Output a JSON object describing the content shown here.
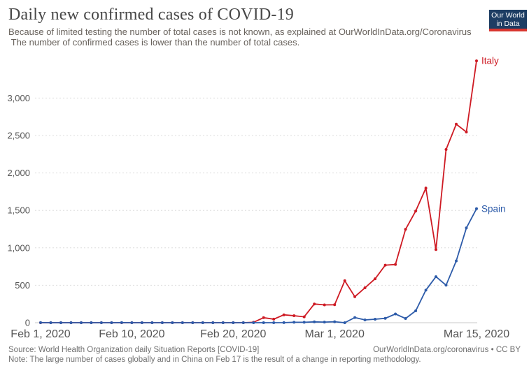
{
  "header": {
    "title": "Daily new confirmed cases of COVID-19",
    "subtitle_line1": "Because of limited testing the number of total cases is not known, as explained at OurWorldInData.org/Coronavirus",
    "subtitle_line2": " The number of confirmed cases is lower than the number of total cases."
  },
  "logo": {
    "line1": "Our World",
    "line2": "in Data",
    "bg_color": "#1d3d63",
    "bar_color": "#d8362f"
  },
  "chart_data": {
    "type": "line",
    "title": "Daily new confirmed cases of COVID-19",
    "xlabel": "",
    "ylabel": "",
    "grid": true,
    "ylim": [
      0,
      3500
    ],
    "x": [
      "Feb 1",
      "Feb 2",
      "Feb 3",
      "Feb 4",
      "Feb 5",
      "Feb 6",
      "Feb 7",
      "Feb 8",
      "Feb 9",
      "Feb 10",
      "Feb 11",
      "Feb 12",
      "Feb 13",
      "Feb 14",
      "Feb 15",
      "Feb 16",
      "Feb 17",
      "Feb 18",
      "Feb 19",
      "Feb 20",
      "Feb 21",
      "Feb 22",
      "Feb 23",
      "Feb 24",
      "Feb 25",
      "Feb 26",
      "Feb 27",
      "Feb 28",
      "Feb 29",
      "Mar 1",
      "Mar 2",
      "Mar 3",
      "Mar 4",
      "Mar 5",
      "Mar 6",
      "Mar 7",
      "Mar 8",
      "Mar 9",
      "Mar 10",
      "Mar 11",
      "Mar 12",
      "Mar 13",
      "Mar 14",
      "Mar 15"
    ],
    "x_ticks": [
      {
        "index": 0,
        "label": "Feb 1, 2020"
      },
      {
        "index": 9,
        "label": "Feb 10, 2020"
      },
      {
        "index": 19,
        "label": "Feb 20, 2020"
      },
      {
        "index": 29,
        "label": "Mar 1, 2020"
      },
      {
        "index": 43,
        "label": "Mar 15, 2020"
      }
    ],
    "y_ticks": [
      {
        "value": 0,
        "label": "0"
      },
      {
        "value": 500,
        "label": "500"
      },
      {
        "value": 1000,
        "label": "1,000"
      },
      {
        "value": 1500,
        "label": "1,500"
      },
      {
        "value": 2000,
        "label": "2,000"
      },
      {
        "value": 2500,
        "label": "2,500"
      },
      {
        "value": 3000,
        "label": "3,000"
      }
    ],
    "legend_position": "end-of-line labels",
    "series": [
      {
        "name": "Italy",
        "color": "#ce1a23",
        "values": [
          0,
          0,
          0,
          0,
          0,
          0,
          0,
          0,
          0,
          0,
          0,
          0,
          0,
          0,
          0,
          0,
          0,
          0,
          0,
          0,
          0,
          6,
          67,
          48,
          105,
          93,
          78,
          250,
          238,
          240,
          561,
          347,
          466,
          587,
          769,
          778,
          1247,
          1492,
          1797,
          977,
          2313,
          2651,
          2547,
          3497
        ]
      },
      {
        "name": "Spain",
        "color": "#2d5ba9",
        "values": [
          1,
          0,
          0,
          0,
          0,
          0,
          0,
          0,
          1,
          0,
          0,
          0,
          0,
          0,
          0,
          0,
          0,
          0,
          0,
          0,
          0,
          0,
          0,
          0,
          1,
          6,
          6,
          11,
          8,
          13,
          0,
          69,
          37,
          47,
          59,
          117,
          56,
          159,
          435,
          615,
          501,
          825,
          1266,
          1522
        ]
      }
    ]
  },
  "footer": {
    "source": "Source: World Health Organization daily Situation Reports [COVID-19]",
    "attribution": "OurWorldInData.org/coronavirus • CC BY",
    "note": "Note: The large number of cases globally and in China on Feb 17 is the result of a change in reporting methodology."
  }
}
